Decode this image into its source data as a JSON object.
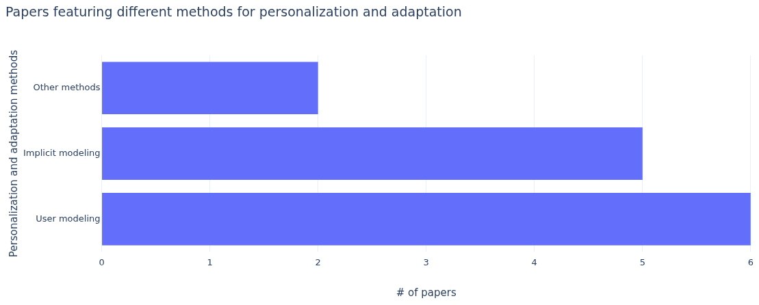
{
  "chart_data": {
    "type": "bar",
    "orientation": "horizontal",
    "title": "Papers featuring different methods for personalization and adaptation",
    "xlabel": "# of papers",
    "ylabel": "Personalization and adaptation methods",
    "categories": [
      "Other methods",
      "Implicit modeling",
      "User modeling"
    ],
    "values": [
      2,
      5,
      6
    ],
    "color": "#636efa",
    "xlim": [
      0,
      6
    ],
    "xticks": [
      0,
      1,
      2,
      3,
      4,
      5,
      6
    ],
    "grid": "x",
    "legend": false
  }
}
